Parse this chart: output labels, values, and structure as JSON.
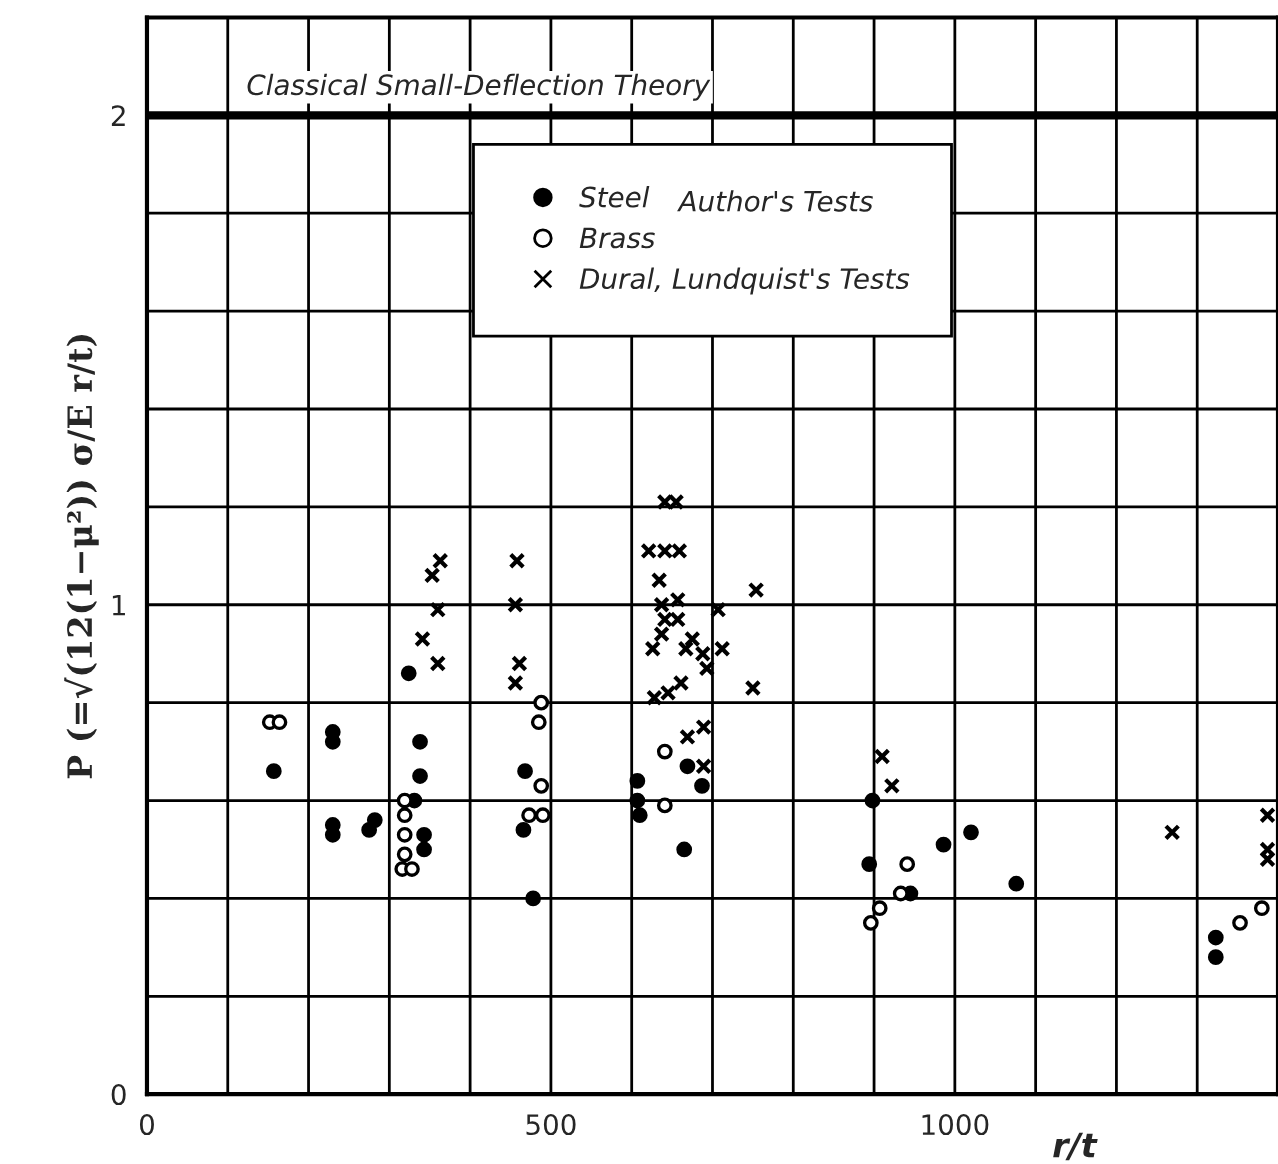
{
  "chart_data": {
    "type": "scatter",
    "xlabel": "r/t",
    "ylabel": "P (=√(12(1−μ²)) σ/E r/t)",
    "xlim": [
      0,
      1400
    ],
    "ylim": [
      0,
      2.2
    ],
    "xticks": [
      0,
      {
        "value": 100,
        "label": null
      },
      {
        "value": 200,
        "label": null
      },
      {
        "value": 300,
        "label": null
      },
      {
        "value": 400,
        "label": null
      },
      500,
      {
        "value": 600,
        "label": null
      },
      {
        "value": 700,
        "label": null
      },
      {
        "value": 800,
        "label": null
      },
      {
        "value": 900,
        "label": null
      },
      1000,
      {
        "value": 1100,
        "label": null
      },
      {
        "value": 1200,
        "label": null
      },
      {
        "value": 1300,
        "label": null
      }
    ],
    "yticks": [
      0,
      {
        "value": 0.2,
        "label": null
      },
      {
        "value": 0.4,
        "label": null
      },
      {
        "value": 0.6,
        "label": null
      },
      {
        "value": 0.8,
        "label": null
      },
      1,
      {
        "value": 1.2,
        "label": null
      },
      {
        "value": 1.4,
        "label": null
      },
      {
        "value": 1.6,
        "label": null
      },
      {
        "value": 1.8,
        "label": null
      },
      2
    ],
    "grid": true,
    "legend": "top",
    "ref_lines": [
      {
        "axis": "y",
        "value": 2,
        "label": "Classical Small-Deflection Theory",
        "color": "#000000"
      }
    ],
    "annotations": [
      "Author's Tests"
    ],
    "series": [
      {
        "name": "Steel",
        "color": "#000000",
        "marker": "circle",
        "x": [
          157,
          230,
          230,
          230,
          230,
          275,
          282,
          324,
          338,
          338,
          331,
          343,
          343,
          468,
          466,
          478,
          607,
          607,
          610,
          669,
          687,
          665,
          898,
          894,
          986,
          1020,
          1076,
          945,
          1323,
          1323
        ],
        "values": [
          0.66,
          0.74,
          0.72,
          0.55,
          0.53,
          0.54,
          0.56,
          0.86,
          0.72,
          0.65,
          0.6,
          0.53,
          0.5,
          0.66,
          0.54,
          0.4,
          0.64,
          0.6,
          0.57,
          0.67,
          0.63,
          0.5,
          0.6,
          0.47,
          0.51,
          0.535,
          0.43,
          0.41,
          0.32,
          0.28
        ]
      },
      {
        "name": "Brass",
        "color": "#ffffff",
        "marker": "circle",
        "x": [
          152,
          164,
          319,
          319,
          319,
          319,
          316,
          328,
          488,
          485,
          488,
          473,
          490,
          641,
          641,
          933,
          941,
          907,
          896,
          1353,
          1380
        ],
        "values": [
          0.76,
          0.76,
          0.6,
          0.57,
          0.53,
          0.49,
          0.46,
          0.46,
          0.8,
          0.76,
          0.63,
          0.57,
          0.57,
          0.7,
          0.59,
          0.41,
          0.47,
          0.38,
          0.35,
          0.35,
          0.38
        ]
      },
      {
        "name": "Dural, Lundquist's Tests",
        "color": "#000000",
        "marker": "cross",
        "x": [
          363,
          353,
          360,
          341,
          360,
          458,
          456,
          461,
          456,
          641,
          655,
          621,
          641,
          659,
          634,
          754,
          637,
          657,
          707,
          641,
          657,
          637,
          626,
          675,
          667,
          688,
          712,
          693,
          661,
          750,
          628,
          645,
          689,
          669,
          689,
          910,
          922,
          1269,
          1387,
          1387,
          1387
        ],
        "values": [
          1.09,
          1.06,
          0.99,
          0.93,
          0.88,
          1.09,
          1.0,
          0.88,
          0.84,
          1.21,
          1.21,
          1.11,
          1.11,
          1.11,
          1.05,
          1.03,
          1.0,
          1.01,
          0.99,
          0.97,
          0.97,
          0.94,
          0.91,
          0.93,
          0.91,
          0.9,
          0.91,
          0.87,
          0.84,
          0.83,
          0.81,
          0.82,
          0.75,
          0.73,
          0.67,
          0.69,
          0.63,
          0.535,
          0.57,
          0.5,
          0.48
        ]
      }
    ]
  }
}
